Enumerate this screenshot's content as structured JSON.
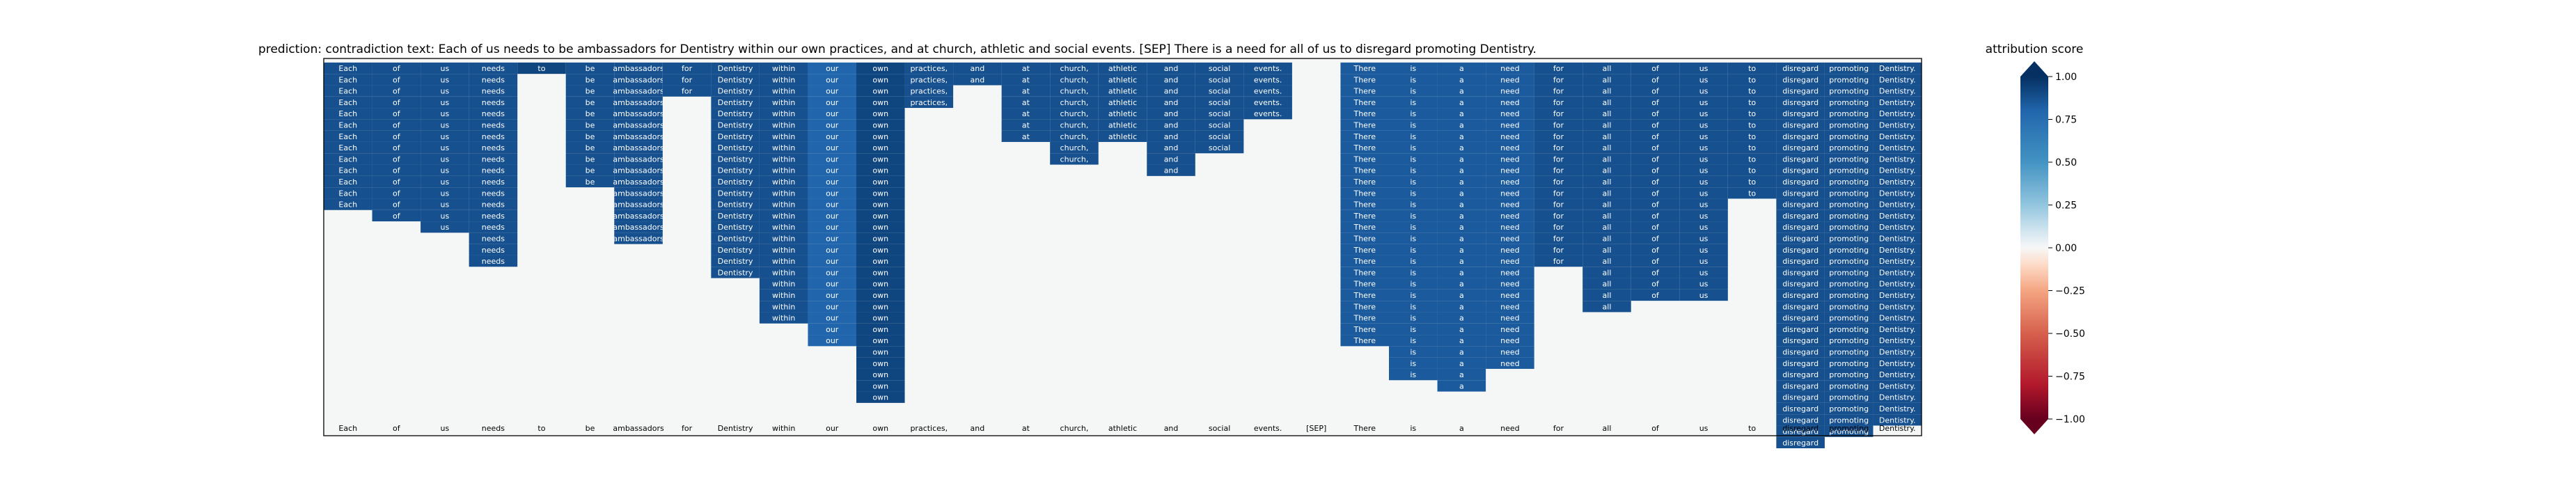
{
  "title": "prediction:  contradiction     text:  Each of us needs to be ambassadors for Dentistry within our own practices, and at church, athletic and social events. [SEP] There is a need for all of us to disregard promoting Dentistry.",
  "colorbar": {
    "label": "attribution score",
    "ticks": [
      "1.00",
      "0.75",
      "0.50",
      "0.25",
      "0.00",
      "−0.25",
      "−0.50",
      "−0.75",
      "−1.00"
    ],
    "range": [
      -1,
      1
    ]
  },
  "chart_data": {
    "type": "heatmap",
    "title": "prediction:  contradiction     text:  Each of us needs to be ambassadors for Dentistry within our own practices, and at church, athletic and social events. [SEP] There is a need for all of us to disregard promoting Dentistry.",
    "colorscale": "RdBu",
    "vmin": -1,
    "vmax": 1,
    "colorbar_label": "attribution score",
    "n_rows": 34,
    "tokens": [
      "Each",
      "of",
      "us",
      "needs",
      "to",
      "be",
      "ambassadors",
      "for",
      "Dentistry",
      "within",
      "our",
      "own",
      "practices,",
      "and",
      "at",
      "church,",
      "athletic",
      "and",
      "social",
      "events.",
      "[SEP]",
      "There",
      "is",
      "a",
      "need",
      "for",
      "all",
      "of",
      "us",
      "to",
      "disregard",
      "promoting",
      "Dentistry."
    ],
    "token_columns": [
      {
        "token": "Each",
        "rows": 13,
        "value": 0.85
      },
      {
        "token": "of",
        "rows": 14,
        "value": 0.85
      },
      {
        "token": "us",
        "rows": 15,
        "value": 0.85
      },
      {
        "token": "needs",
        "rows": 18,
        "value": 0.85
      },
      {
        "token": "to",
        "rows": 1,
        "value": 0.9
      },
      {
        "token": "be",
        "rows": 11,
        "value": 0.85
      },
      {
        "token": "ambassadors",
        "rows": 16,
        "value": 0.85
      },
      {
        "token": "for",
        "rows": 3,
        "value": 0.85
      },
      {
        "token": "Dentistry",
        "rows": 19,
        "value": 0.85
      },
      {
        "token": "within",
        "rows": 23,
        "value": 0.85
      },
      {
        "token": "our",
        "rows": 25,
        "value": 0.75
      },
      {
        "token": "own",
        "rows": 30,
        "value": 0.9
      },
      {
        "token": "practices,",
        "rows": 4,
        "value": 0.85
      },
      {
        "token": "and",
        "rows": 2,
        "value": 0.85
      },
      {
        "token": "at",
        "rows": 7,
        "value": 0.85
      },
      {
        "token": "church,",
        "rows": 9,
        "value": 0.85
      },
      {
        "token": "athletic",
        "rows": 7,
        "value": 0.85
      },
      {
        "token": "and",
        "rows": 10,
        "value": 0.85
      },
      {
        "token": "social",
        "rows": 8,
        "value": 0.85
      },
      {
        "token": "events.",
        "rows": 5,
        "value": 0.85
      },
      {
        "token": "[SEP]",
        "rows": 0,
        "value": 0.0
      },
      {
        "token": "There",
        "rows": 25,
        "value": 0.8
      },
      {
        "token": "is",
        "rows": 28,
        "value": 0.8
      },
      {
        "token": "a",
        "rows": 29,
        "value": 0.8
      },
      {
        "token": "need",
        "rows": 27,
        "value": 0.8
      },
      {
        "token": "for",
        "rows": 18,
        "value": 0.85
      },
      {
        "token": "all",
        "rows": 22,
        "value": 0.85
      },
      {
        "token": "of",
        "rows": 21,
        "value": 0.85
      },
      {
        "token": "us",
        "rows": 21,
        "value": 0.85
      },
      {
        "token": "to",
        "rows": 12,
        "value": 0.85
      },
      {
        "token": "disregard",
        "rows": 34,
        "value": 0.85
      },
      {
        "token": "promoting",
        "rows": 33,
        "value": 0.85
      },
      {
        "token": "Dentistry.",
        "rows": 32,
        "value": 0.85
      }
    ]
  }
}
